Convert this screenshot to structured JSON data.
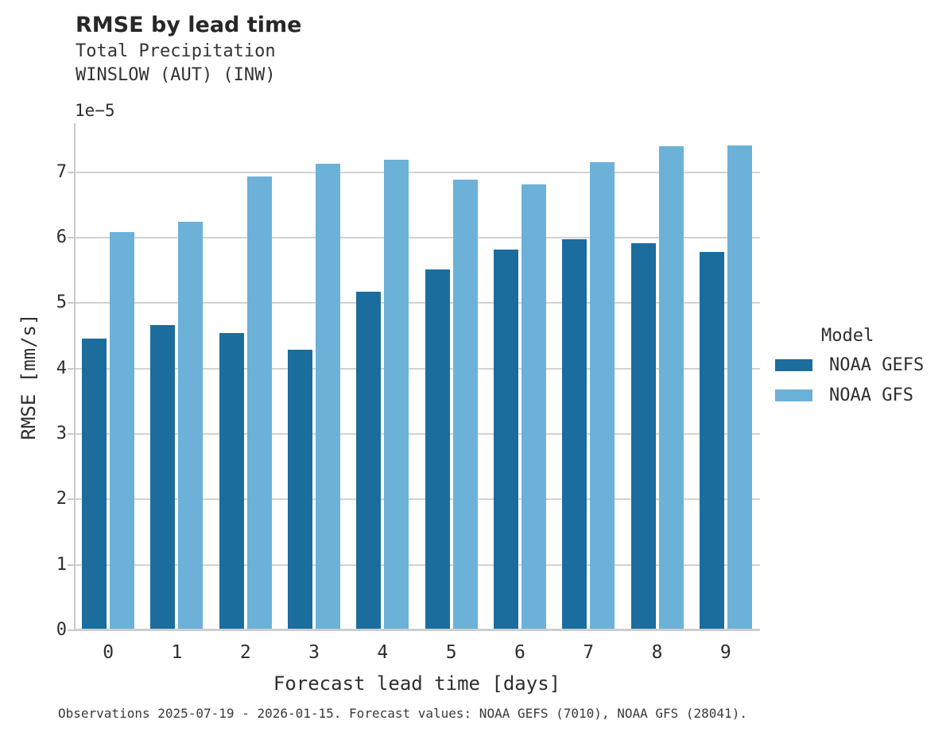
{
  "header": {
    "title": "RMSE by lead time",
    "subtitle_line1": "Total Precipitation",
    "subtitle_line2": "WINSLOW (AUT) (INW)"
  },
  "colors": {
    "gefs_dark_blue": "#1b6d9d",
    "gfs_light_blue": "#6cb1d8",
    "gridline_gray": "#d2d2d2",
    "axis_spine_gray": "#c9c9c9"
  },
  "legend": {
    "title": "Model",
    "entries": [
      {
        "label": "NOAA GEFS",
        "color": "#1b6d9d"
      },
      {
        "label": "NOAA GFS",
        "color": "#6cb1d8"
      }
    ]
  },
  "caption": "Observations 2025-07-19 - 2026-01-15. Forecast values: NOAA GEFS (7010), NOAA GFS (28041).",
  "chart_data": {
    "type": "bar",
    "title": "RMSE by lead time",
    "subtitle": [
      "Total Precipitation",
      "WINSLOW (AUT) (INW)"
    ],
    "xlabel": "Forecast lead time [days]",
    "ylabel": "RMSE [mm/s]",
    "y_offset_label": "1e−5",
    "units_scale": "1e-5",
    "categories": [
      "0",
      "1",
      "2",
      "3",
      "4",
      "5",
      "6",
      "7",
      "8",
      "9"
    ],
    "series": [
      {
        "name": "NOAA GEFS",
        "color": "#1b6d9d",
        "values": [
          4.46,
          4.67,
          4.54,
          4.29,
          5.17,
          5.51,
          5.82,
          5.98,
          5.91,
          5.78
        ]
      },
      {
        "name": "NOAA GFS",
        "color": "#6cb1d8",
        "values": [
          6.08,
          6.24,
          6.94,
          7.13,
          7.19,
          6.89,
          6.81,
          7.16,
          7.4,
          7.41
        ]
      }
    ],
    "y_ticks": [
      "0",
      "1",
      "2",
      "3",
      "4",
      "5",
      "6",
      "7"
    ],
    "ylim": [
      0,
      7.75
    ],
    "grid": true,
    "legend_title": "Model",
    "legend_position": "right"
  }
}
